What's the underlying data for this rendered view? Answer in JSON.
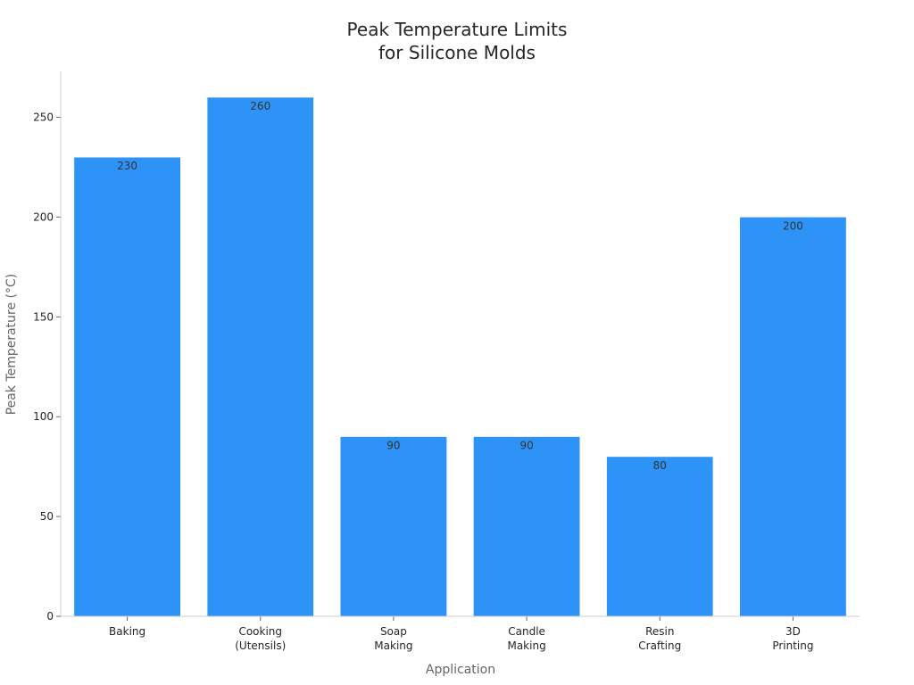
{
  "chart_data": {
    "type": "bar",
    "title_lines": [
      "Peak Temperature Limits",
      "for Silicone Molds"
    ],
    "xlabel": "Application",
    "ylabel": "Peak Temperature (°C)",
    "categories": [
      [
        "Baking"
      ],
      [
        "Cooking",
        "(Utensils)"
      ],
      [
        "Soap",
        "Making"
      ],
      [
        "Candle",
        "Making"
      ],
      [
        "Resin",
        "Crafting"
      ],
      [
        "3D",
        "Printing"
      ]
    ],
    "values": [
      230,
      260,
      90,
      90,
      80,
      200
    ],
    "ylim": [
      0,
      273
    ],
    "yticks": [
      0,
      50,
      100,
      150,
      200,
      250
    ],
    "bar_color": "#2e93f7",
    "grid": false,
    "legend": "none"
  }
}
